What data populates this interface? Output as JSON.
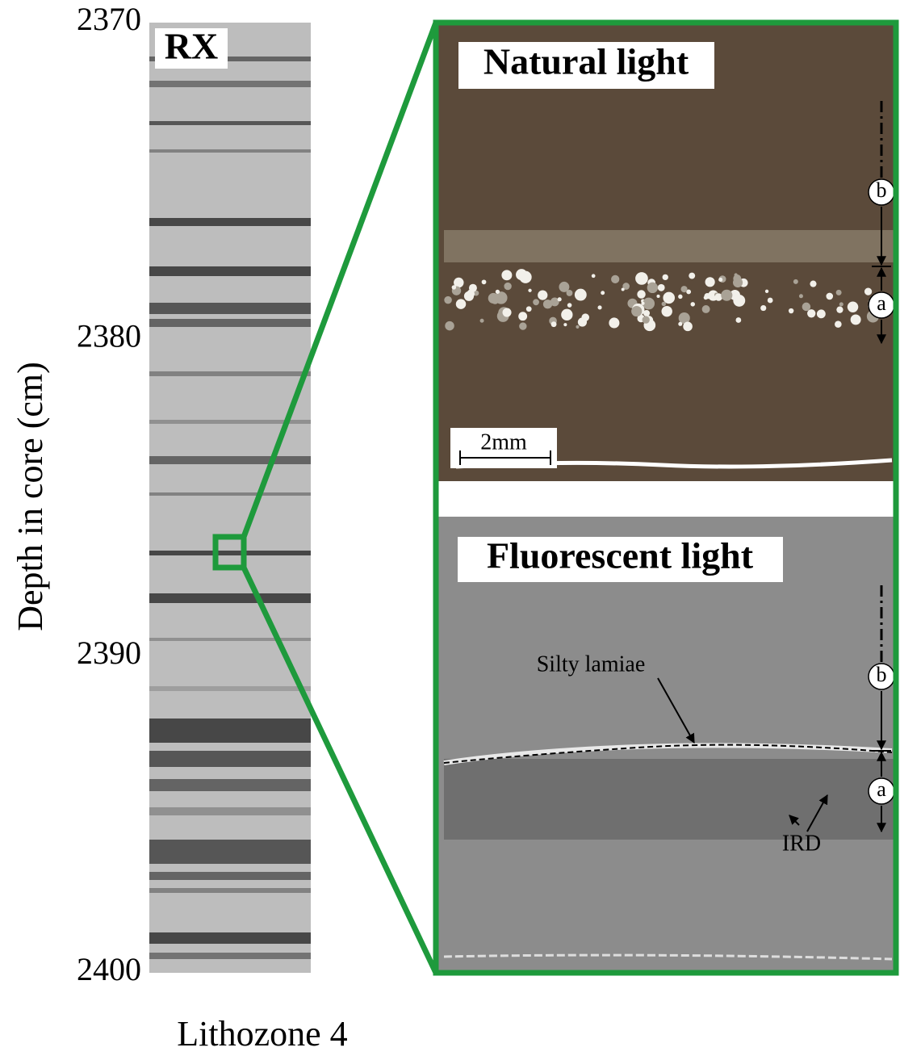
{
  "core": {
    "label": "RX",
    "axis_title": "Depth in core (cm)",
    "ticks": [
      2370,
      2380,
      2390,
      2400
    ],
    "caption": "Lithozone 4"
  },
  "panels": [
    {
      "title": "Natural light",
      "scale": "2mm",
      "markers": [
        "b",
        "a"
      ]
    },
    {
      "title": "Fluorescent light",
      "annotations": [
        "Silty lamiae",
        "IRD"
      ],
      "markers": [
        "b",
        "a"
      ]
    }
  ]
}
